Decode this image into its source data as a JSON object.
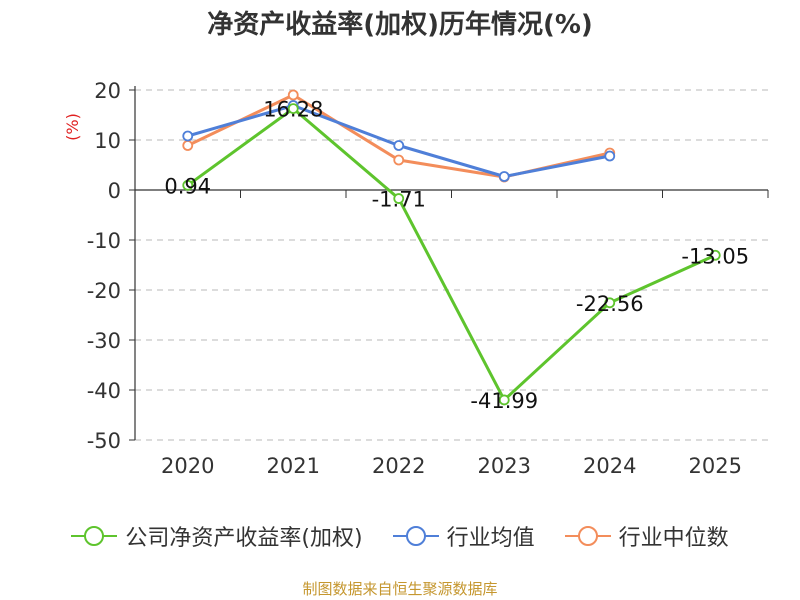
{
  "title": "净资产收益率(加权)历年情况(%)",
  "source": "制图数据来自恒生聚源数据库",
  "chart_data": {
    "type": "line",
    "title": "净资产收益率(加权)历年情况(%)",
    "ylabel": "(%)",
    "xlabel": "",
    "categories": [
      "2020",
      "2021",
      "2022",
      "2023",
      "2024",
      "2025"
    ],
    "yticks": [
      20,
      10,
      0,
      -10,
      -20,
      -30,
      -40,
      -50
    ],
    "ylim": [
      -50,
      20
    ],
    "grid": true,
    "legend_position": "bottom",
    "series": [
      {
        "name": "公司净资产收益率(加权)",
        "color": "#5ec42d",
        "values": [
          0.94,
          16.28,
          -1.71,
          -41.99,
          -22.56,
          -13.05
        ],
        "labels": [
          "0.94",
          "16.28",
          "-1.71",
          "-41.99",
          "-22.56",
          "-13.05"
        ]
      },
      {
        "name": "行业均值",
        "color": "#4f7fd8",
        "values": [
          10.8,
          16.9,
          8.9,
          2.7,
          6.8,
          null
        ]
      },
      {
        "name": "行业中位数",
        "color": "#f38d5b",
        "values": [
          8.9,
          19.0,
          6.0,
          2.6,
          7.4,
          null
        ]
      }
    ]
  }
}
